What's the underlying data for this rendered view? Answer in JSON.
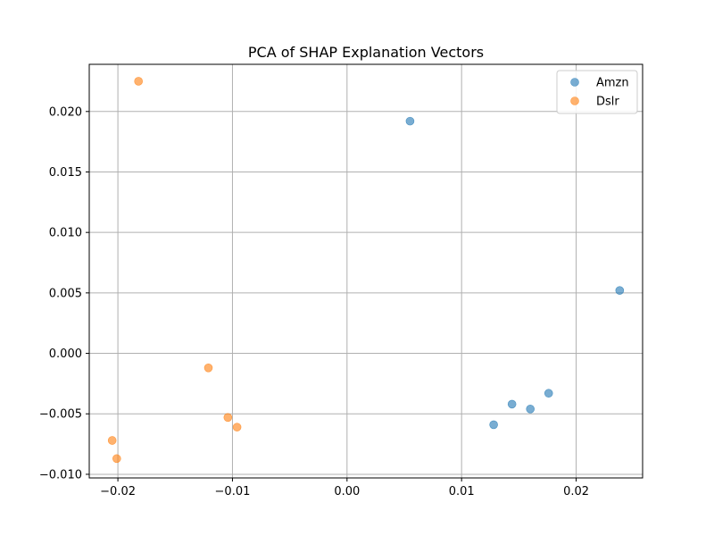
{
  "chart_data": {
    "type": "scatter",
    "title": "PCA of SHAP Explanation Vectors",
    "xlabel": "",
    "ylabel": "",
    "xlim": [
      -0.0225,
      0.0258
    ],
    "ylim": [
      -0.0103,
      0.0239
    ],
    "x_ticks": [
      {
        "value": -0.02,
        "label": "−0.02"
      },
      {
        "value": -0.01,
        "label": "−0.01"
      },
      {
        "value": 0.0,
        "label": "0.00"
      },
      {
        "value": 0.01,
        "label": "0.01"
      },
      {
        "value": 0.02,
        "label": "0.02"
      }
    ],
    "y_ticks": [
      {
        "value": -0.01,
        "label": "−0.010"
      },
      {
        "value": -0.005,
        "label": "−0.005"
      },
      {
        "value": 0.0,
        "label": "0.000"
      },
      {
        "value": 0.005,
        "label": "0.005"
      },
      {
        "value": 0.01,
        "label": "0.010"
      },
      {
        "value": 0.015,
        "label": "0.015"
      },
      {
        "value": 0.02,
        "label": "0.020"
      }
    ],
    "grid": true,
    "legend_position": "top-right",
    "series": [
      {
        "name": "Amzn",
        "color": "#1f77b4",
        "points": [
          {
            "x": 0.0055,
            "y": 0.0192
          },
          {
            "x": 0.0238,
            "y": 0.0052
          },
          {
            "x": 0.0176,
            "y": -0.0033
          },
          {
            "x": 0.0144,
            "y": -0.0042
          },
          {
            "x": 0.016,
            "y": -0.0046
          },
          {
            "x": 0.0128,
            "y": -0.0059
          }
        ]
      },
      {
        "name": "Dslr",
        "color": "#ff7f0e",
        "points": [
          {
            "x": -0.0182,
            "y": 0.0225
          },
          {
            "x": -0.0121,
            "y": -0.0012
          },
          {
            "x": -0.0104,
            "y": -0.0053
          },
          {
            "x": -0.0096,
            "y": -0.0061
          },
          {
            "x": -0.0205,
            "y": -0.0072
          },
          {
            "x": -0.0201,
            "y": -0.0087
          }
        ]
      }
    ]
  }
}
